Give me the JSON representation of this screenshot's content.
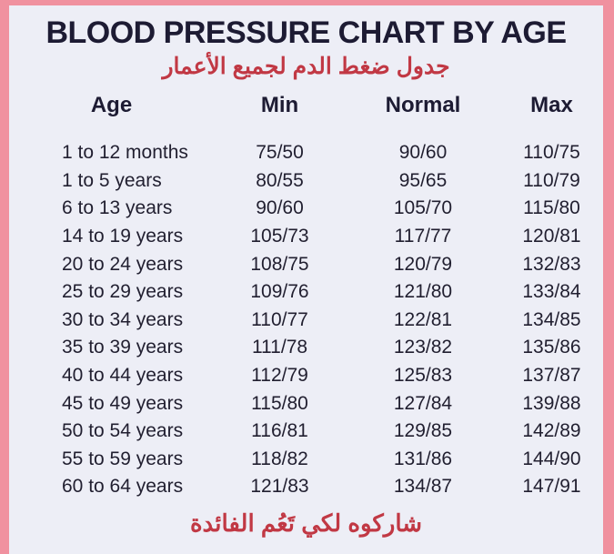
{
  "title": "BLOOD PRESSURE CHART BY AGE",
  "subtitle_arabic": "جدول ضغط الدم لجميع الأعمار",
  "footer_arabic": "شاركوه لكي تَعُم الفائدة",
  "colors": {
    "frame_pink": "#f0919f",
    "panel_background": "#edeef6",
    "heading_navy": "#1d1b33",
    "arabic_red": "#c13844"
  },
  "chart_data": {
    "type": "table",
    "title": "BLOOD PRESSURE CHART BY AGE",
    "columns": [
      "Age",
      "Min",
      "Normal",
      "Max"
    ],
    "rows": [
      [
        "1 to 12 months",
        "75/50",
        "90/60",
        "110/75"
      ],
      [
        "1 to 5 years",
        "80/55",
        "95/65",
        "110/79"
      ],
      [
        "6 to 13 years",
        "90/60",
        "105/70",
        "115/80"
      ],
      [
        "14 to 19 years",
        "105/73",
        "117/77",
        "120/81"
      ],
      [
        "20 to 24 years",
        "108/75",
        "120/79",
        "132/83"
      ],
      [
        "25 to 29 years",
        "109/76",
        "121/80",
        "133/84"
      ],
      [
        "30 to 34 years",
        "110/77",
        "122/81",
        "134/85"
      ],
      [
        "35 to 39 years",
        "111/78",
        "123/82",
        "135/86"
      ],
      [
        "40 to 44 years",
        "112/79",
        "125/83",
        "137/87"
      ],
      [
        "45 to 49 years",
        "115/80",
        "127/84",
        "139/88"
      ],
      [
        "50 to 54 years",
        "116/81",
        "129/85",
        "142/89"
      ],
      [
        "55 to 59 years",
        "118/82",
        "131/86",
        "144/90"
      ],
      [
        "60 to 64 years",
        "121/83",
        "134/87",
        "147/91"
      ]
    ]
  }
}
